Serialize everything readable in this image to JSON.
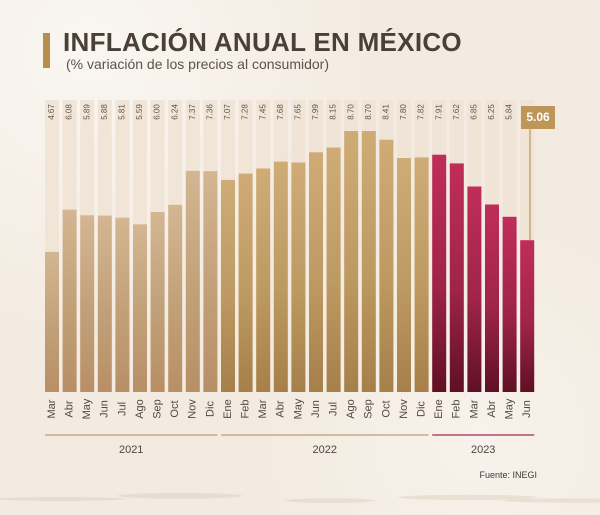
{
  "header": {
    "title": "INFLACIÓN ANUAL EN MÉXICO",
    "subtitle": "(% variación de los precios al consumidor)"
  },
  "source": {
    "label": "Fuente: INEGI"
  },
  "colors": {
    "background": "#f3ebe1",
    "accent": "#b88e4f",
    "label_text": "#5e554d",
    "year_2021_fill": "#c1a078",
    "year_2022_fill": "#bd9a62",
    "year_2023_fill": "#9f2448",
    "highlight_box": "#be9658",
    "highlight_text": "#ffffff"
  },
  "icons": {
    "left_marker": "title-accent-bar",
    "callout": "latest-value-callout"
  },
  "chart_data": {
    "type": "bar",
    "title": "INFLACIÓN ANUAL EN MÉXICO",
    "subtitle": "(% variación de los precios al consumidor)",
    "xlabel": "",
    "ylabel": "",
    "ylim": [
      0,
      9
    ],
    "grid": false,
    "legend": "none",
    "highlight_value": "5.06",
    "categories": [
      "Mar",
      "Abr",
      "May",
      "Jun",
      "Jul",
      "Ago",
      "Sep",
      "Oct",
      "Nov",
      "Dic",
      "Ene",
      "Feb",
      "Mar",
      "Abr",
      "May",
      "Jun",
      "Jul",
      "Ago",
      "Sep",
      "Oct",
      "Nov",
      "Dic",
      "Ene",
      "Feb",
      "Mar",
      "Abr",
      "May",
      "Jun"
    ],
    "values": [
      4.67,
      6.08,
      5.89,
      5.88,
      5.81,
      5.59,
      6.0,
      6.24,
      7.37,
      7.36,
      7.07,
      7.28,
      7.45,
      7.68,
      7.65,
      7.99,
      8.15,
      8.7,
      8.7,
      8.41,
      7.8,
      7.82,
      7.91,
      7.62,
      6.85,
      6.25,
      5.84,
      5.06
    ],
    "value_labels": [
      "4.67",
      "6.08",
      "5.89",
      "5.88",
      "5.81",
      "5.59",
      "6.00",
      "6.24",
      "7.37",
      "7.36",
      "7.07",
      "7.28",
      "7.45",
      "7.68",
      "7.65",
      "7.99",
      "8.15",
      "8.70",
      "8.70",
      "8.41",
      "7.80",
      "7.82",
      "7.91",
      "7.62",
      "6.85",
      "6.25",
      "5.84",
      ""
    ],
    "groups": [
      {
        "label": "2021",
        "start": 0,
        "end": 9
      },
      {
        "label": "2022",
        "start": 10,
        "end": 21
      },
      {
        "label": "2023",
        "start": 22,
        "end": 27
      }
    ]
  }
}
